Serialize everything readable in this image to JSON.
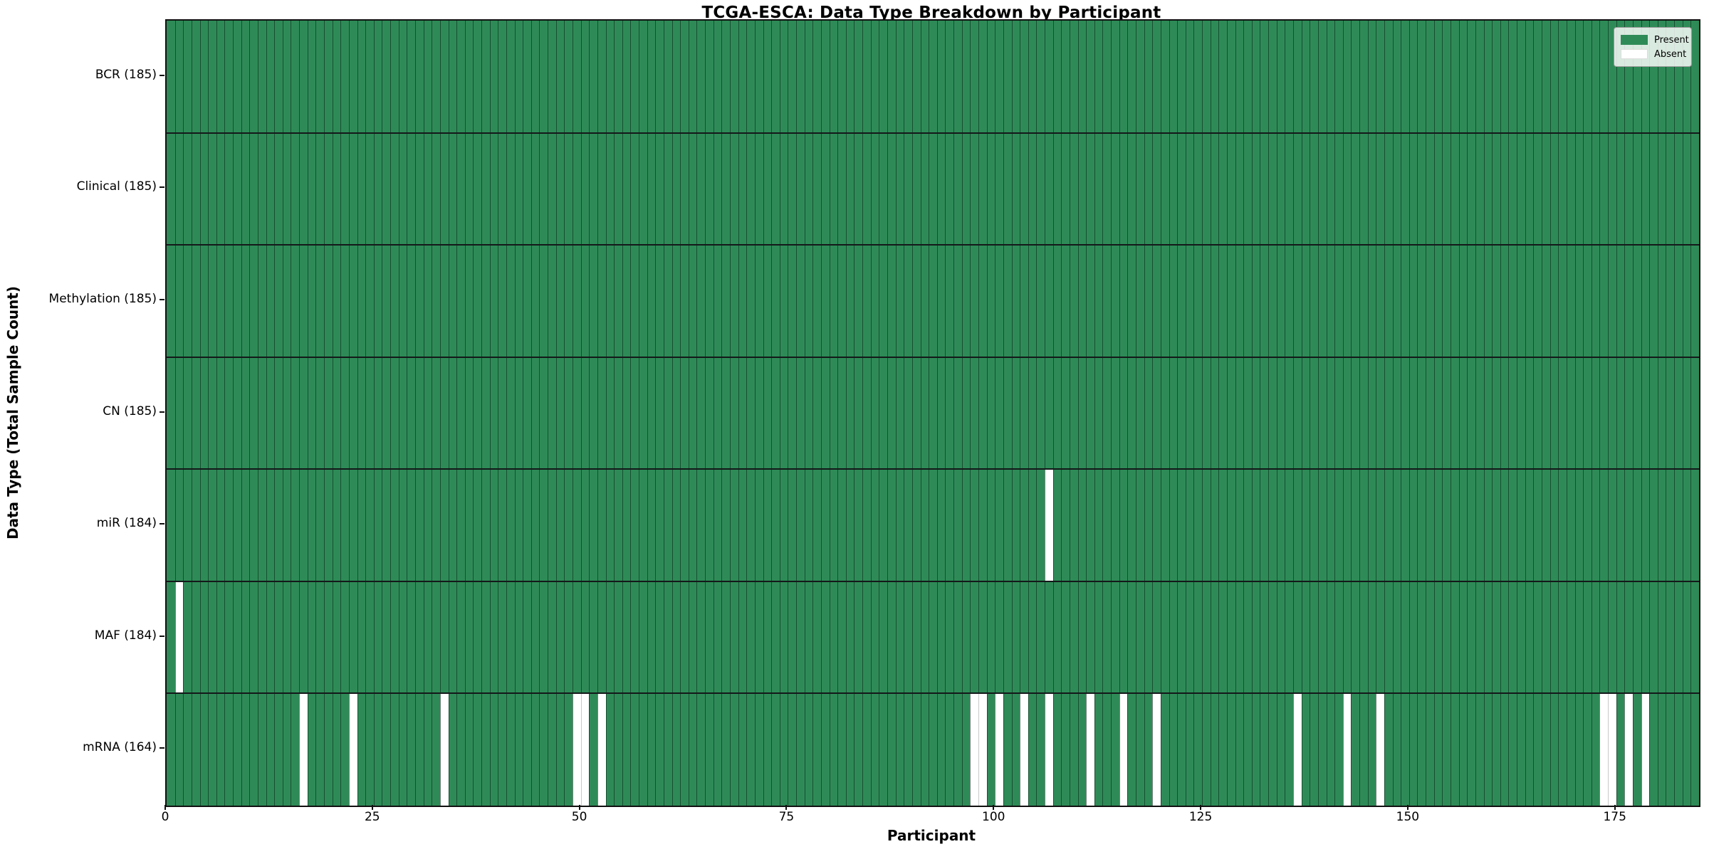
{
  "chart_data": {
    "type": "heatmap",
    "title": "TCGA-ESCA: Data Type Breakdown by Participant",
    "xlabel": "Participant",
    "ylabel": "Data Type (Total Sample Count)",
    "n_participants": 185,
    "x_ticks": [
      0,
      25,
      50,
      75,
      100,
      125,
      150,
      175
    ],
    "colors": {
      "present": "#2e8b57",
      "absent": "#ffffff",
      "cell_edge": "rgba(8,30,18,0.55)"
    },
    "legend": [
      {
        "label": "Present",
        "color": "#2e8b57"
      },
      {
        "label": "Absent",
        "color": "#ffffff"
      }
    ],
    "legend_position": "upper right",
    "grid": false,
    "rows": [
      {
        "label": "BCR (185)",
        "data_type": "BCR",
        "present_count": 185,
        "absent_participants": []
      },
      {
        "label": "Clinical (185)",
        "data_type": "Clinical",
        "present_count": 185,
        "absent_participants": []
      },
      {
        "label": "Methylation (185)",
        "data_type": "Methylation",
        "present_count": 185,
        "absent_participants": []
      },
      {
        "label": "CN (185)",
        "data_type": "CN",
        "present_count": 185,
        "absent_participants": []
      },
      {
        "label": "miR (184)",
        "data_type": "miR",
        "present_count": 184,
        "absent_participants": [
          106
        ]
      },
      {
        "label": "MAF (184)",
        "data_type": "MAF",
        "present_count": 184,
        "absent_participants": [
          1
        ]
      },
      {
        "label": "mRNA (164)",
        "data_type": "mRNA",
        "present_count": 164,
        "absent_participants": [
          16,
          22,
          33,
          49,
          50,
          52,
          97,
          98,
          100,
          103,
          106,
          111,
          115,
          119,
          136,
          142,
          146,
          173,
          174,
          176,
          178
        ]
      }
    ]
  }
}
